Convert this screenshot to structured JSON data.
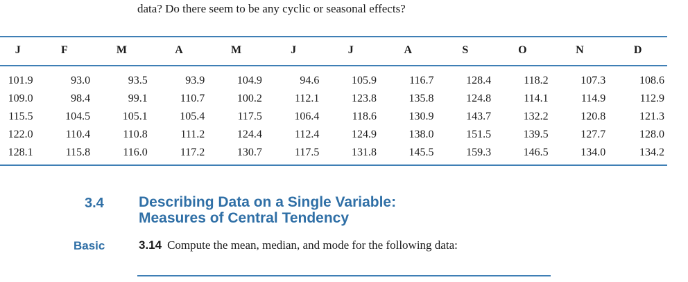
{
  "intro_text": "data? Do there seem to be any cyclic or seasonal effects?",
  "table": {
    "headers": [
      "J",
      "F",
      "M",
      "A",
      "M",
      "J",
      "J",
      "A",
      "S",
      "O",
      "N",
      "D"
    ],
    "rows": [
      [
        "101.9",
        "93.0",
        "93.5",
        "93.9",
        "104.9",
        "94.6",
        "105.9",
        "116.7",
        "128.4",
        "118.2",
        "107.3",
        "108.6"
      ],
      [
        "109.0",
        "98.4",
        "99.1",
        "110.7",
        "100.2",
        "112.1",
        "123.8",
        "135.8",
        "124.8",
        "114.1",
        "114.9",
        "112.9"
      ],
      [
        "115.5",
        "104.5",
        "105.1",
        "105.4",
        "117.5",
        "106.4",
        "118.6",
        "130.9",
        "143.7",
        "132.2",
        "120.8",
        "121.3"
      ],
      [
        "122.0",
        "110.4",
        "110.8",
        "111.2",
        "124.4",
        "112.4",
        "124.9",
        "138.0",
        "151.5",
        "139.5",
        "127.7",
        "128.0"
      ],
      [
        "128.1",
        "115.8",
        "116.0",
        "117.2",
        "130.7",
        "117.5",
        "131.8",
        "145.5",
        "159.3",
        "146.5",
        "134.0",
        "134.2"
      ]
    ]
  },
  "section": {
    "number": "3.4",
    "title_line1": "Describing Data on a Single Variable:",
    "title_line2": "Measures of Central Tendency"
  },
  "exercise": {
    "level": "Basic",
    "number": "3.14",
    "text": "Compute the mean, median, and mode for the following data:"
  },
  "colors": {
    "accent": "#2f6fa6",
    "rule": "#3f7fb5",
    "text": "#1a1a1a"
  }
}
